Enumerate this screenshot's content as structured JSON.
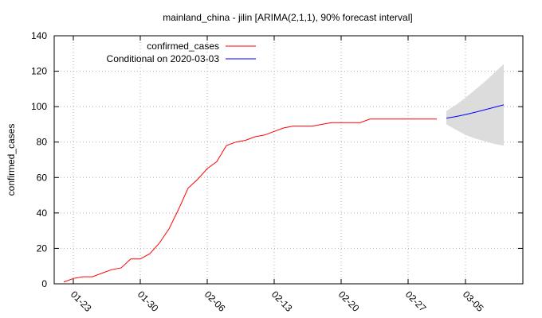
{
  "chart_data": {
    "type": "line",
    "title": "mainland_china - jilin [ARIMA(2,1,1), 90% forecast interval]",
    "xlabel": "",
    "ylabel": "confirmed_cases",
    "ylim": [
      0,
      140
    ],
    "yticks": [
      0,
      20,
      40,
      60,
      80,
      100,
      120,
      140
    ],
    "xlim": [
      "2021-01-21",
      "2021-03-11"
    ],
    "xtick_labels": [
      "01-23",
      "01-30",
      "02-06",
      "02-13",
      "02-20",
      "02-27",
      "03-05"
    ],
    "xtick_dates": [
      "2021-01-23",
      "2021-01-30",
      "2021-02-06",
      "2021-02-13",
      "2021-02-20",
      "2021-02-27",
      "2021-03-05"
    ],
    "grid": true,
    "legend_position": "top-left",
    "series": [
      {
        "name": "confirmed_cases",
        "color": "#ff0000",
        "x": [
          "2021-01-22",
          "2021-01-23",
          "2021-01-24",
          "2021-01-25",
          "2021-01-26",
          "2021-01-27",
          "2021-01-28",
          "2021-01-29",
          "2021-01-30",
          "2021-01-31",
          "2021-02-01",
          "2021-02-02",
          "2021-02-03",
          "2021-02-04",
          "2021-02-05",
          "2021-02-06",
          "2021-02-07",
          "2021-02-08",
          "2021-02-09",
          "2021-02-10",
          "2021-02-11",
          "2021-02-12",
          "2021-02-13",
          "2021-02-14",
          "2021-02-15",
          "2021-02-16",
          "2021-02-17",
          "2021-02-18",
          "2021-02-19",
          "2021-02-20",
          "2021-02-21",
          "2021-02-22",
          "2021-02-23",
          "2021-02-24",
          "2021-02-25",
          "2021-02-26",
          "2021-02-27",
          "2021-02-28",
          "2021-03-01",
          "2021-03-02"
        ],
        "values": [
          1,
          3,
          4,
          4,
          6,
          8,
          9,
          14,
          14,
          17,
          23,
          31,
          42,
          54,
          59,
          65,
          69,
          78,
          80,
          81,
          83,
          84,
          86,
          88,
          89,
          89,
          89,
          90,
          91,
          91,
          91,
          91,
          93,
          93,
          93,
          93,
          93,
          93,
          93,
          93
        ]
      },
      {
        "name": "Conditional on 2020-03-03",
        "color": "#0000ff",
        "x": [
          "2021-03-03",
          "2021-03-04",
          "2021-03-05",
          "2021-03-06",
          "2021-03-07",
          "2021-03-08",
          "2021-03-09"
        ],
        "values": [
          93.5,
          94.4,
          95.5,
          96.8,
          98.2,
          99.6,
          101
        ],
        "band_lower": [
          90,
          87,
          84,
          82,
          80.5,
          79,
          78
        ],
        "band_upper": [
          97.5,
          101,
          105,
          109.5,
          114,
          119,
          124
        ]
      }
    ]
  }
}
